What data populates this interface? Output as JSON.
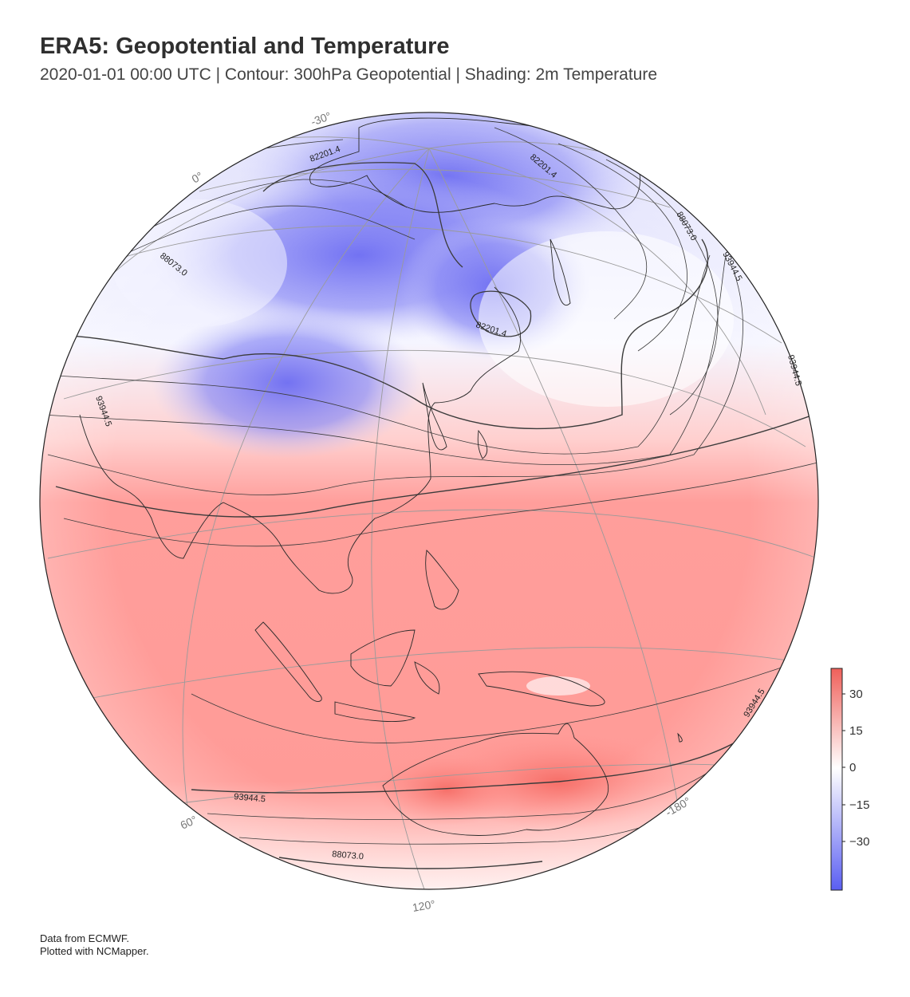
{
  "header": {
    "title": "ERA5: Geopotential and Temperature",
    "subtitle": "2020-01-01 00:00 UTC | Contour: 300hPa Geopotential | Shading: 2m Temperature"
  },
  "credits": {
    "line1": "Data from ECMWF.",
    "line2": "Plotted with NCMapper."
  },
  "map": {
    "projection": "orthographic",
    "gridline_labels": [
      "-30°",
      "0°",
      "60°",
      "120°",
      "-180°"
    ],
    "contour_labels": [
      "82201.4",
      "82201.4",
      "82201.4",
      "88073.0",
      "88073.0",
      "88073.0",
      "93944.5",
      "93944.5",
      "93944.5",
      "93944.5",
      "93944.5"
    ],
    "colors": {
      "warm": "#ff8a8a",
      "cold": "#6b6bf0",
      "neutral": "#ffffff",
      "coastline": "#333333",
      "gridline": "#999999"
    }
  },
  "colorbar": {
    "ticks": [
      "30",
      "15",
      "0",
      "−15",
      "−30"
    ],
    "colors": [
      "#f2605a",
      "#ffffff",
      "#5b5ff2"
    ]
  }
}
